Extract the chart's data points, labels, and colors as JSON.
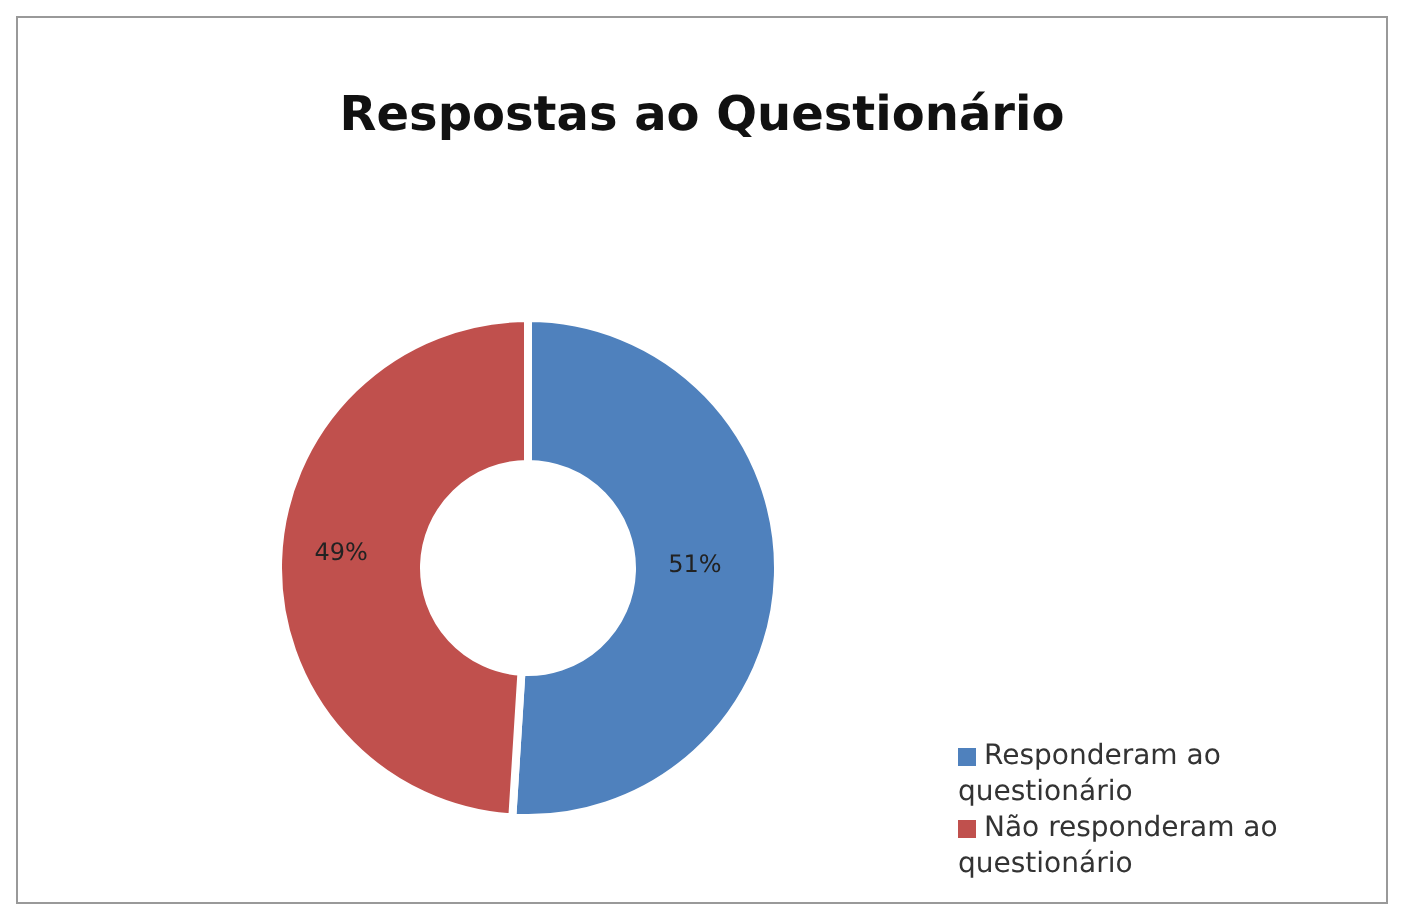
{
  "chart_data": {
    "type": "donut",
    "title": "Respostas ao Questionário",
    "categories": [
      "Responderam ao questionário",
      "Não responderam ao questionário"
    ],
    "values": [
      51,
      49
    ],
    "colors": [
      "#4f81bd",
      "#c0504d"
    ],
    "value_labels": [
      "51%",
      "49%"
    ],
    "legend": "bottom right"
  }
}
